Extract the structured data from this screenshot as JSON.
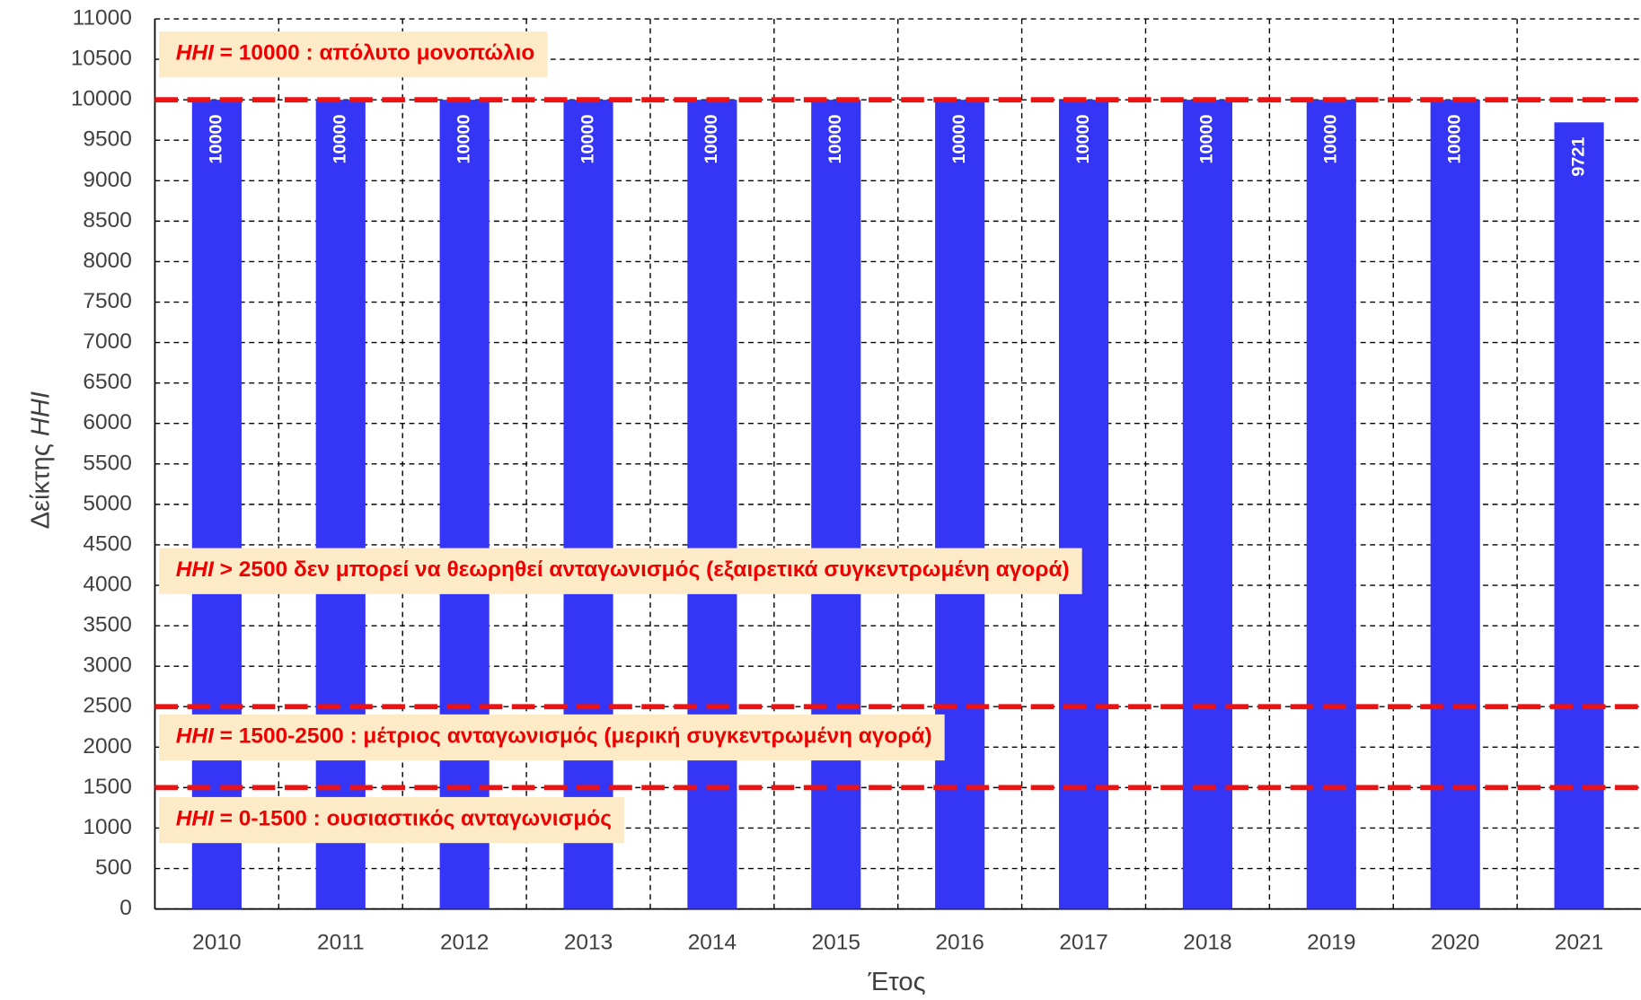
{
  "chart_data": {
    "type": "bar",
    "y_label": {
      "text": "Δείκτης",
      "emphasis": "HHI"
    },
    "x_label": "Έτος",
    "categories": [
      "2010",
      "2011",
      "2012",
      "2013",
      "2014",
      "2015",
      "2016",
      "2017",
      "2018",
      "2019",
      "2020",
      "2021"
    ],
    "values": [
      10000,
      10000,
      10000,
      10000,
      10000,
      10000,
      10000,
      10000,
      10000,
      10000,
      10000,
      9721
    ],
    "color": "#3535f5",
    "ylim": [
      0,
      11000
    ],
    "yticks": [
      0,
      500,
      1000,
      1500,
      2000,
      2500,
      3000,
      3500,
      4000,
      4500,
      5000,
      5500,
      6000,
      6500,
      7000,
      7500,
      8000,
      8500,
      9000,
      9500,
      10000,
      10500,
      11000
    ],
    "grid": true,
    "reference_lines": [
      10000,
      2500,
      1500
    ],
    "reference_color": "#ee1111",
    "annotations": [
      {
        "emphasis": "HHI",
        "text": "= 10000 : απόλυτο μονοπώλιο"
      },
      {
        "emphasis": "HHI",
        "text": "> 2500 δεν μπορεί να θεωρηθεί ανταγωνισμός (εξαιρετικά συγκεντρωμένη αγορά)"
      },
      {
        "emphasis": "HHI",
        "text": "= 1500-2500 : μέτριος ανταγωνισμός (μερική συγκεντρωμένη αγορά)"
      },
      {
        "emphasis": "HHI",
        "text": "= 0-1500 : ουσιαστικός ανταγωνισμός"
      }
    ]
  }
}
